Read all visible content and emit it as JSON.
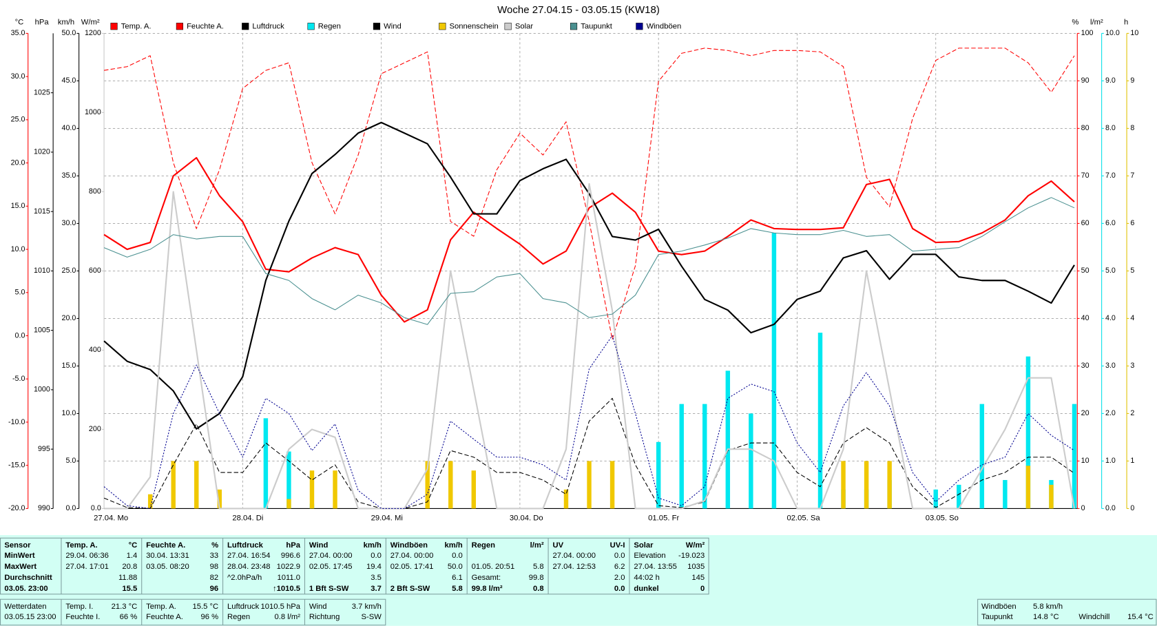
{
  "chart_data": {
    "type": "line",
    "title": "Woche 27.04.15 - 03.05.15 (KW18)",
    "categories": [
      "27.04. Mo",
      null,
      null,
      null,
      null,
      null,
      "28.04. Di",
      null,
      null,
      null,
      null,
      null,
      "29.04. Mi",
      null,
      null,
      null,
      null,
      null,
      "30.04. Do",
      null,
      null,
      null,
      null,
      null,
      "01.05. Fr",
      null,
      null,
      null,
      null,
      null,
      "02.05. Sa",
      null,
      null,
      null,
      null,
      null,
      "03.05. So",
      null,
      null,
      null,
      null,
      null,
      null
    ],
    "axes": [
      {
        "unit": "°C",
        "color": "#ff0000",
        "side": "left",
        "lim": [
          -20,
          35
        ],
        "ticks": [
          {
            "value": -20,
            "label": "-20.0"
          },
          {
            "value": -15,
            "label": "-15.0"
          },
          {
            "value": -10,
            "label": "-10.0"
          },
          {
            "value": -5,
            "label": "-5.0"
          },
          {
            "value": 0,
            "label": "0.0"
          },
          {
            "value": 5,
            "label": "5.0"
          },
          {
            "value": 10,
            "label": "10.0"
          },
          {
            "value": 15,
            "label": "15.0"
          },
          {
            "value": 20,
            "label": "20.0"
          },
          {
            "value": 25,
            "label": "25.0"
          },
          {
            "value": 30,
            "label": "30.0"
          },
          {
            "value": 35,
            "label": "35.0"
          }
        ]
      },
      {
        "unit": "hPa",
        "color": "#000000",
        "side": "left",
        "lim": [
          990,
          1030
        ],
        "ticks": [
          990,
          995,
          1000,
          1005,
          1010,
          1015,
          1020,
          1025
        ]
      },
      {
        "unit": "km/h",
        "color": "#000000",
        "side": "left",
        "lim": [
          0,
          50
        ],
        "ticks": [
          {
            "value": 0,
            "label": "0.0"
          },
          {
            "value": 5,
            "label": "5.0"
          },
          {
            "value": 10,
            "label": "10.0"
          },
          {
            "value": 15,
            "label": "15.0"
          },
          {
            "value": 20,
            "label": "20.0"
          },
          {
            "value": 25,
            "label": "25.0"
          },
          {
            "value": 30,
            "label": "30.0"
          },
          {
            "value": 35,
            "label": "35.0"
          },
          {
            "value": 40,
            "label": "40.0"
          },
          {
            "value": 45,
            "label": "45.0"
          },
          {
            "value": 50,
            "label": "50.0"
          }
        ]
      },
      {
        "unit": "W/m²",
        "color": "#c8c8c8",
        "side": "left",
        "lim": [
          0,
          1200
        ],
        "ticks": [
          {
            "value": 0,
            "label": "0.0"
          },
          200,
          400,
          600,
          800,
          1000,
          1200
        ]
      },
      {
        "unit": "%",
        "color": "#ff0000",
        "side": "right",
        "lim": [
          0,
          100
        ],
        "grid": true,
        "ticks": [
          0,
          10,
          20,
          30,
          40,
          50,
          60,
          70,
          80,
          90,
          100
        ]
      },
      {
        "unit": "l/m²",
        "color": "#00e0e8",
        "side": "right",
        "lim": [
          0,
          10
        ],
        "ticks": [
          {
            "value": 0,
            "label": "0.0"
          },
          {
            "value": 1,
            "label": "1.0"
          },
          {
            "value": 2,
            "label": "2.0"
          },
          {
            "value": 3,
            "label": "3.0"
          },
          {
            "value": 4,
            "label": "4.0"
          },
          {
            "value": 5,
            "label": "5.0"
          },
          {
            "value": 6,
            "label": "6.0"
          },
          {
            "value": 7,
            "label": "7.0"
          },
          {
            "value": 8,
            "label": "8.0"
          },
          {
            "value": 9,
            "label": "9.0"
          },
          {
            "value": 10,
            "label": "10.0"
          }
        ]
      },
      {
        "unit": "h",
        "color": "#e0c000",
        "side": "right",
        "lim": [
          0,
          10
        ],
        "ticks": [
          0,
          1,
          2,
          3,
          4,
          5,
          6,
          7,
          8,
          9,
          10
        ]
      }
    ],
    "series": [
      {
        "name": "Temp. A.",
        "color": "#ff0000",
        "axis": 0,
        "style": "thick",
        "values": [
          11.7,
          10.0,
          10.8,
          18.5,
          20.6,
          16.2,
          13.2,
          7.7,
          7.4,
          9.0,
          10.2,
          9.4,
          4.7,
          1.6,
          3.0,
          11.1,
          14.3,
          12.4,
          10.6,
          8.3,
          9.8,
          14.8,
          16.5,
          14.3,
          9.8,
          9.4,
          9.8,
          11.5,
          13.4,
          12.4,
          12.3,
          12.3,
          12.5,
          17.5,
          18.1,
          12.4,
          10.8,
          10.9,
          11.9,
          13.4,
          16.2,
          17.9,
          15.5
        ]
      },
      {
        "name": "Feuchte A.",
        "color": "#ff0000",
        "axis": 4,
        "style": "dashed",
        "values": [
          92.2,
          93,
          95.3,
          72.8,
          58.9,
          71.3,
          88.4,
          92.2,
          93.8,
          72.8,
          62,
          74.4,
          91.5,
          93.8,
          96.1,
          60.4,
          57.3,
          71.3,
          79,
          74.4,
          81.4,
          60.4,
          35.6,
          51.1,
          89.9,
          95.8,
          96.9,
          96.4,
          95.3,
          96.4,
          96.4,
          96.1,
          93,
          69.7,
          63.5,
          82.1,
          94.3,
          96.9,
          96.9,
          96.9,
          93.8,
          87.6,
          95.3
        ]
      },
      {
        "name": "Luftdruck",
        "color": "#000000",
        "axis": 1,
        "style": "thick",
        "values": [
          1004.1,
          1002.4,
          1001.7,
          999.9,
          996.7,
          998.0,
          1001.1,
          1009.2,
          1014.2,
          1018.2,
          1019.8,
          1021.6,
          1022.5,
          1021.6,
          1020.7,
          1017.9,
          1014.8,
          1014.8,
          1017.6,
          1018.6,
          1019.4,
          1016.5,
          1012.9,
          1012.6,
          1013.5,
          1010.4,
          1007.6,
          1006.7,
          1004.8,
          1005.5,
          1007.6,
          1008.3,
          1011.1,
          1011.7,
          1009.3,
          1011.4,
          1011.4,
          1009.5,
          1009.2,
          1009.2,
          1008.3,
          1007.3,
          1010.5
        ]
      },
      {
        "name": "Regen",
        "color": "#00e8f0",
        "axis": 5,
        "style": "bar",
        "values": [
          0,
          0,
          0,
          0,
          0,
          0,
          0,
          1.9,
          1.2,
          0.1,
          0,
          0,
          0,
          0,
          0,
          0,
          0,
          0,
          0,
          0,
          0,
          0,
          0,
          0,
          1.4,
          2.2,
          2.2,
          2.9,
          2.0,
          5.8,
          0,
          3.7,
          0.4,
          0.4,
          0.6,
          0,
          0.4,
          0.5,
          2.2,
          0.6,
          3.2,
          0.6,
          2.2
        ]
      },
      {
        "name": "Wind",
        "color": "#000000",
        "axis": 2,
        "style": "dashed",
        "values": [
          1.1,
          0.1,
          0,
          4.6,
          8.9,
          3.8,
          3.8,
          6.9,
          5.0,
          3.0,
          4.6,
          0.7,
          0,
          0,
          0.7,
          6.1,
          5.4,
          3.8,
          3.8,
          3.0,
          1.5,
          9.2,
          11.6,
          4.6,
          0.3,
          0.1,
          0.7,
          6.1,
          6.9,
          6.9,
          3.8,
          2.3,
          6.9,
          8.5,
          6.9,
          2.3,
          0.1,
          1.5,
          3.0,
          3.8,
          5.4,
          5.4,
          3.7
        ]
      },
      {
        "name": "Sonnenschein",
        "color": "#f0c800",
        "axis": 6,
        "style": "bar",
        "values": [
          0,
          0,
          0.3,
          1,
          1,
          0.4,
          0,
          0,
          0.2,
          0.8,
          0.8,
          0,
          0,
          0,
          1,
          1,
          0.8,
          0,
          0,
          0,
          0.4,
          1,
          1,
          0,
          0,
          0,
          0,
          0,
          0,
          0,
          0,
          0,
          1,
          1,
          1,
          0,
          0,
          0,
          0,
          0,
          0.9,
          0.5,
          0
        ]
      },
      {
        "name": "Solar",
        "color": "#cccccc",
        "axis": 3,
        "style": "thick",
        "values": [
          0,
          0,
          80,
          800,
          400,
          0,
          0,
          0,
          150,
          200,
          180,
          0,
          0,
          0,
          100,
          600,
          300,
          0,
          0,
          0,
          150,
          820,
          500,
          0,
          0,
          0,
          20,
          150,
          150,
          120,
          0,
          0,
          150,
          600,
          300,
          0,
          0,
          0,
          100,
          200,
          330,
          330,
          0
        ]
      },
      {
        "name": "Taupunkt",
        "color": "#4a9090",
        "axis": 0,
        "style": "solid",
        "values": [
          10.2,
          9.1,
          10.0,
          11.7,
          11.2,
          11.5,
          11.5,
          7.2,
          6.4,
          4.3,
          3.0,
          4.7,
          3.8,
          2.1,
          1.3,
          4.9,
          5.1,
          6.8,
          7.2,
          4.3,
          3.8,
          2.1,
          2.5,
          4.7,
          9.4,
          9.8,
          10.5,
          11.3,
          12.4,
          11.9,
          11.7,
          11.7,
          12.2,
          11.5,
          11.7,
          9.8,
          10.0,
          10.2,
          11.5,
          13.2,
          14.8,
          16.0,
          14.8
        ]
      },
      {
        "name": "Windböen",
        "color": "#000090",
        "axis": 2,
        "style": "dotted",
        "values": [
          2.3,
          0.3,
          0,
          10,
          15.1,
          10,
          5.4,
          11.6,
          10,
          6.1,
          8.9,
          1.9,
          0,
          0,
          1.5,
          9.2,
          7.3,
          5.4,
          5.4,
          4.6,
          3.0,
          14.7,
          18.2,
          10,
          1.1,
          0.3,
          2.3,
          11.6,
          13.1,
          12.3,
          6.9,
          3.8,
          10.8,
          14.3,
          10.8,
          3.8,
          0.7,
          3.0,
          4.6,
          5.4,
          10,
          7.7,
          6.1
        ]
      }
    ]
  },
  "stats": {
    "blocks": [
      {
        "header": [
          "Sensor"
        ],
        "rows": [
          [
            "MinWert"
          ],
          [
            "MaxWert"
          ],
          [
            "Durchschnitt"
          ],
          [
            "03.05. 23:00"
          ]
        ]
      },
      {
        "header": [
          "Temp. A.",
          "°C"
        ],
        "rows": [
          [
            "29.04.  06:36",
            "1.4"
          ],
          [
            "27.04.  17:01",
            "20.8"
          ],
          [
            null,
            "11.88"
          ],
          [
            null,
            "15.5"
          ]
        ]
      },
      {
        "header": [
          "Feuchte A.",
          "%"
        ],
        "rows": [
          [
            "30.04.  13:31",
            "33"
          ],
          [
            "03.05.  08:20",
            "98"
          ],
          [
            null,
            "82"
          ],
          [
            null,
            "96"
          ]
        ]
      },
      {
        "header": [
          "Luftdruck",
          "hPa"
        ],
        "rows": [
          [
            "27.04.  16:54",
            "996.6"
          ],
          [
            "28.04.  23:48",
            "1022.9"
          ],
          [
            "^2.0hPa/h",
            "1011.0"
          ],
          [
            null,
            "↑1010.5"
          ]
        ]
      },
      {
        "header": [
          "Wind",
          "km/h"
        ],
        "rows": [
          [
            "27.04.  00:00",
            "0.0"
          ],
          [
            "02.05.  17:45",
            "19.4"
          ],
          [
            null,
            "3.5"
          ],
          [
            "1 Bft S-SW",
            "3.7"
          ]
        ]
      },
      {
        "header": [
          "Windböen",
          "km/h"
        ],
        "rows": [
          [
            "27.04.  00:00",
            "0.0"
          ],
          [
            "02.05.  17:41",
            "50.0"
          ],
          [
            null,
            "6.1"
          ],
          [
            "2 Bft S-SW",
            "5.8"
          ]
        ]
      },
      {
        "header": [
          "Regen",
          "l/m²"
        ],
        "rows": [
          [
            null,
            null
          ],
          [
            "01.05.  20:51",
            "5.8"
          ],
          [
            "Gesamt:",
            "99.8"
          ],
          [
            "99.8 l/m²",
            "0.8"
          ]
        ]
      },
      {
        "header": [
          "UV",
          "UV-I"
        ],
        "rows": [
          [
            "27.04.  00:00",
            "0.0"
          ],
          [
            "27.04.  12:53",
            "6.2"
          ],
          [
            null,
            "2.0"
          ],
          [
            null,
            "0.0"
          ]
        ]
      },
      {
        "header": [
          "Solar",
          "W/m²"
        ],
        "rows": [
          [
            "Elevation",
            "-19.023"
          ],
          [
            "27.04.  13:55",
            "1035"
          ],
          [
            "44:02 h",
            "145"
          ],
          [
            "dunkel",
            "0"
          ]
        ]
      }
    ]
  },
  "current": {
    "blocks": [
      {
        "rows": [
          [
            "Wetterdaten"
          ],
          [
            "03.05.15 23:00"
          ]
        ]
      },
      {
        "rows": [
          [
            "Temp. I.",
            "21.3 °C"
          ],
          [
            "Feuchte I.",
            "66 %"
          ]
        ]
      },
      {
        "rows": [
          [
            "Temp. A.",
            "15.5 °C"
          ],
          [
            "Feuchte A.",
            "96 %"
          ]
        ]
      },
      {
        "rows": [
          [
            "Luftdruck",
            "1010.5 hPa"
          ],
          [
            "Regen",
            "0.8 l/m²"
          ]
        ]
      },
      {
        "rows": [
          [
            "Wind",
            "3.7 km/h"
          ],
          [
            "Richtung",
            "S-SW"
          ]
        ]
      },
      {
        "rows": [
          [
            "Windböen",
            "5.8 km/h"
          ],
          [
            "Taupunkt",
            "14.8 °C",
            "Windchill",
            "15.4 °C"
          ]
        ]
      }
    ]
  }
}
